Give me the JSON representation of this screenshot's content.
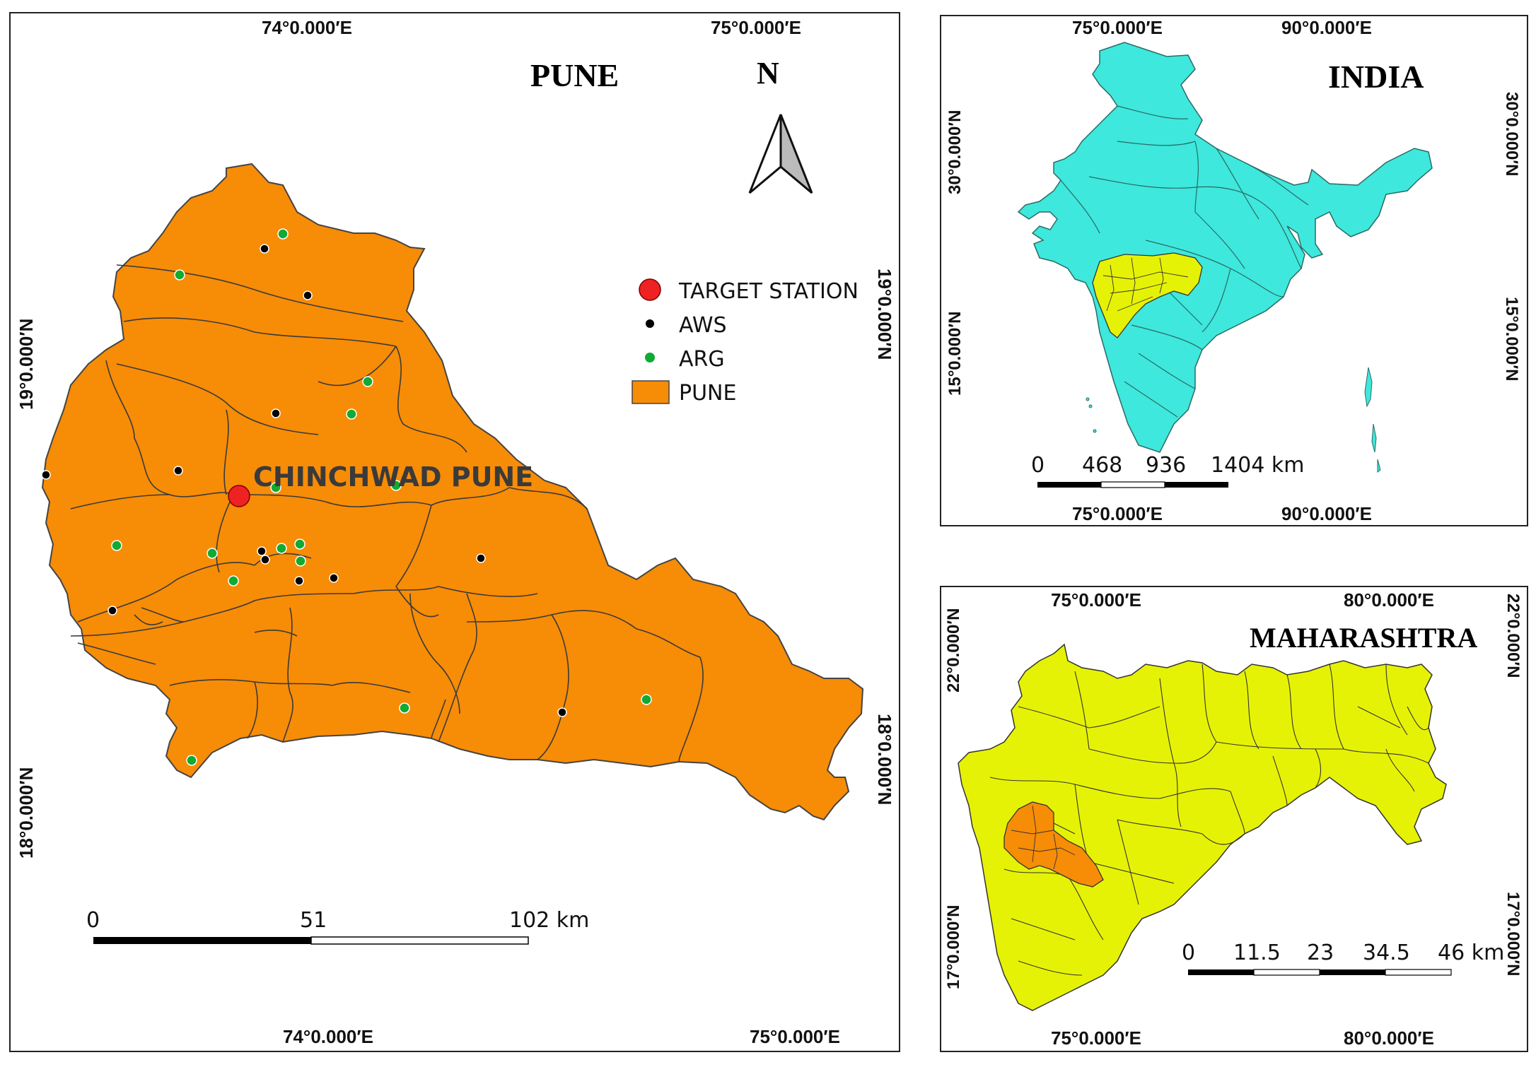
{
  "panels": {
    "pune": {
      "title": "PUNE",
      "north_label": "N",
      "station_label": "CHINCHWAD PUNE",
      "top_ticks": [
        "74°0.000′E",
        "75°0.000′E"
      ],
      "bottom_ticks": [
        "74°0.000′E",
        "75°0.000′E"
      ],
      "left_ticks": [
        "19°0.000′N",
        "18°0.000′N"
      ],
      "right_ticks": [
        "19°0.000′N",
        "18°0.000′N"
      ],
      "scale": [
        "0",
        "51",
        "102 km"
      ],
      "legend": [
        {
          "label": "TARGET STATION",
          "symbol": "red-circle"
        },
        {
          "label": "AWS",
          "symbol": "black-dot"
        },
        {
          "label": "ARG",
          "symbol": "green-dot"
        },
        {
          "label": "PUNE",
          "symbol": "orange-box"
        }
      ]
    },
    "india": {
      "title": "INDIA",
      "top_ticks": [
        "75°0.000′E",
        "90°0.000′E"
      ],
      "bottom_ticks": [
        "75°0.000′E",
        "90°0.000′E"
      ],
      "left_ticks": [
        "30°0.000′N",
        "15°0.000′N"
      ],
      "right_ticks": [
        "30°0.000′N",
        "15°0.000′N"
      ],
      "scale": [
        "0",
        "468",
        "936",
        "1404 km"
      ]
    },
    "maharashtra": {
      "title": "MAHARASHTRA",
      "top_ticks": [
        "75°0.000′E",
        "80°0.000′E"
      ],
      "bottom_ticks": [
        "75°0.000′E",
        "80°0.000′E"
      ],
      "left_ticks": [
        "22°0.000′N",
        "17°0.000′N"
      ],
      "right_ticks": [
        "22°0.000′N",
        "17°0.000′N"
      ],
      "scale": [
        "0",
        "11.5",
        "23",
        "34.5",
        "46 km"
      ]
    }
  },
  "colors": {
    "pune_fill": "#f78c07",
    "india_fill": "#3ee8dc",
    "maharashtra_fill": "#e6f205",
    "target": "#ee2222",
    "aws": "#000000",
    "arg": "#11aa33"
  }
}
